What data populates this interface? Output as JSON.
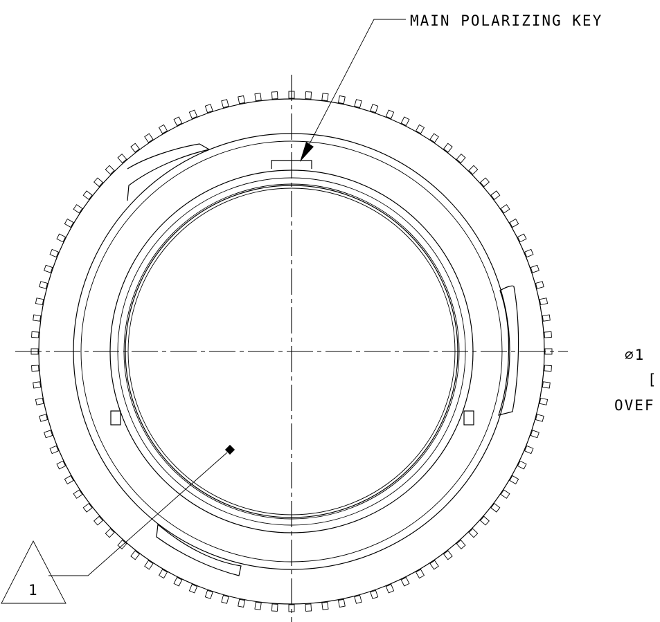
{
  "drawing": {
    "labels": {
      "main_key": "MAIN POLARIZING KEY",
      "dim_line1": "∅1",
      "dim_line2": "[",
      "dim_line3": "OVEF"
    },
    "callout": {
      "number": "1"
    }
  }
}
